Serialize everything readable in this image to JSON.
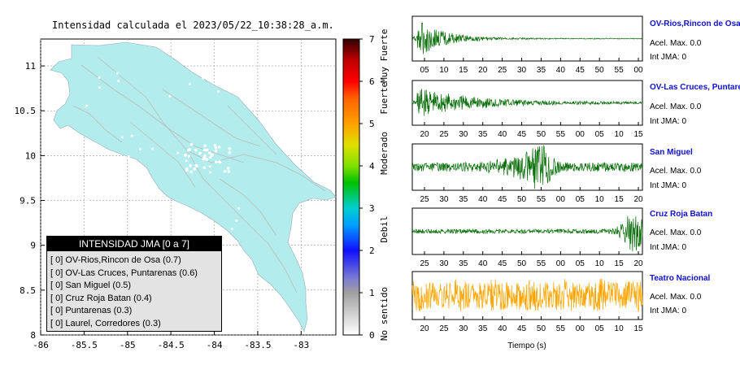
{
  "map": {
    "title": "Intensidad calculada el 2023/05/22_10:38:28_a.m.",
    "xticks": [
      "-86",
      "-85.5",
      "-85",
      "-84.5",
      "-84",
      "-83.5",
      "-83"
    ],
    "yticks": [
      "11",
      "10.5",
      "10",
      "9.5",
      "9",
      "8.5",
      "8"
    ],
    "xlim": [
      -86,
      -82.6
    ],
    "ylim": [
      8,
      11.3
    ],
    "land_color": "#b3ecec",
    "legend": {
      "title": "INTENSIDAD JMA [0 a 7]",
      "items": [
        "[ 0]  OV-Rios,Rincon de Osa (0.7)",
        "[ 0]  OV-Las Cruces, Puntarenas (0.6)",
        "[ 0]  San Miguel (0.5)",
        "[ 0]  Cruz Roja Batan (0.4)",
        "[ 0]  Puntarenas (0.3)",
        "[ 0]  Laurel, Corredores (0.3)"
      ]
    }
  },
  "colorbar": {
    "ticks": [
      "0",
      "1",
      "2",
      "3",
      "4",
      "5",
      "6",
      "7"
    ],
    "categories": [
      "No sentido",
      "Debil",
      "Moderado",
      "Fuerte",
      "Muy Fuerte"
    ],
    "range": [
      0,
      7
    ]
  },
  "waveforms": {
    "xlabel": "Tiempo (s)",
    "stations": [
      {
        "name": "OV-Rios,Rincon de Osa",
        "acel": "Acel. Max. 0.0",
        "int": "Int JMA: 0",
        "color": "#0a6e0a",
        "ticks": [
          "05",
          "10",
          "15",
          "20",
          "25",
          "30",
          "35",
          "40",
          "45",
          "50",
          "55",
          "00"
        ],
        "envelope": "decay-early"
      },
      {
        "name": "OV-Las Cruces, Puntarenas",
        "acel": "Acel. Max. 0.0",
        "int": "Int JMA: 0",
        "color": "#0a6e0a",
        "ticks": [
          "20",
          "25",
          "30",
          "35",
          "40",
          "45",
          "50",
          "55",
          "00",
          "05",
          "10",
          "15"
        ],
        "envelope": "decay-late"
      },
      {
        "name": "San Miguel",
        "acel": "Acel. Max. 0.0",
        "int": "Int JMA: 0",
        "color": "#0a6e0a",
        "ticks": [
          "25",
          "30",
          "35",
          "40",
          "45",
          "50",
          "55",
          "00",
          "05",
          "10",
          "15",
          "20"
        ],
        "envelope": "burst-mid"
      },
      {
        "name": "Cruz Roja Batan",
        "acel": "Acel. Max. 0.0",
        "int": "Int JMA: 0",
        "color": "#0a6e0a",
        "ticks": [
          "25",
          "30",
          "35",
          "40",
          "45",
          "50",
          "55",
          "00",
          "05",
          "10",
          "15",
          "20"
        ],
        "envelope": "burst-end"
      },
      {
        "name": "Teatro Nacional",
        "acel": "Acel. Max. 0.0",
        "int": "Int JMA: 0",
        "color": "#ffa500",
        "ticks": [
          "20",
          "25",
          "30",
          "35",
          "40",
          "45",
          "50",
          "55",
          "00",
          "05",
          "10",
          "15"
        ],
        "envelope": "noise"
      }
    ]
  },
  "chart_data": {
    "type": "line",
    "title": "Intensidad calculada el 2023/05/22_10:38:28_a.m.",
    "xlabel": "Tiempo (s)",
    "series": [
      {
        "name": "OV-Rios,Rincon de Osa",
        "peak_acceleration": 0.0,
        "jma_intensity": 0
      },
      {
        "name": "OV-Las Cruces, Puntarenas",
        "peak_acceleration": 0.0,
        "jma_intensity": 0
      },
      {
        "name": "San Miguel",
        "peak_acceleration": 0.0,
        "jma_intensity": 0
      },
      {
        "name": "Cruz Roja Batan",
        "peak_acceleration": 0.0,
        "jma_intensity": 0
      },
      {
        "name": "Teatro Nacional",
        "peak_acceleration": 0.0,
        "jma_intensity": 0
      }
    ],
    "map_legend_values": [
      0.7,
      0.6,
      0.5,
      0.4,
      0.3,
      0.3
    ],
    "colorbar_range": [
      0,
      7
    ]
  }
}
